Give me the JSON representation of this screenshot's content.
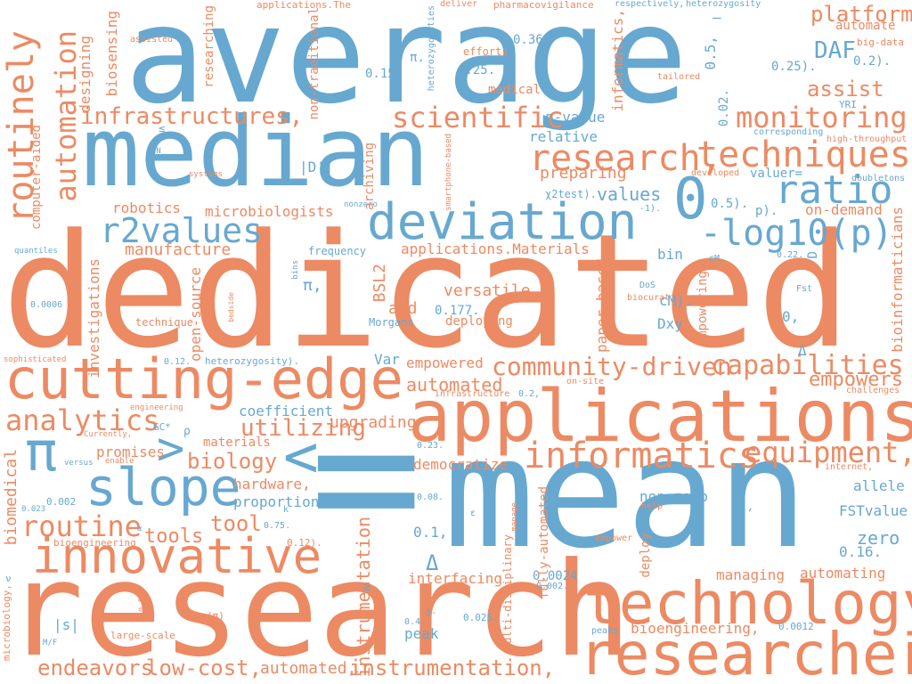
{
  "colors": {
    "blue": "#67a8d0",
    "orange": "#ec8a63",
    "background": "#ffffff"
  },
  "words": [
    {
      "id": "w0",
      "text": "average",
      "color": "blue"
    },
    {
      "id": "w1",
      "text": "median",
      "color": "blue"
    },
    {
      "id": "w2",
      "text": "dedicated",
      "color": "orange"
    },
    {
      "id": "w3",
      "text": "research",
      "color": "orange"
    },
    {
      "id": "w4",
      "text": "mean",
      "color": "blue"
    },
    {
      "id": "w5",
      "text": "applications",
      "color": "orange"
    },
    {
      "id": "w6",
      "text": "=",
      "color": "blue"
    },
    {
      "id": "w7",
      "text": "technology",
      "color": "orange"
    },
    {
      "id": "w8",
      "text": "researchers",
      "color": "orange"
    },
    {
      "id": "w9",
      "text": "cutting-edge",
      "color": "orange"
    },
    {
      "id": "w10",
      "text": "innovative",
      "color": "orange"
    },
    {
      "id": "w11",
      "text": "deviation",
      "color": "blue"
    },
    {
      "id": "w12",
      "text": "slope",
      "color": "blue"
    },
    {
      "id": "w13",
      "text": "π",
      "color": "blue"
    },
    {
      "id": "w14",
      "text": "<",
      "color": "blue"
    },
    {
      "id": "w15",
      "text": ">",
      "color": "blue"
    },
    {
      "id": "w16",
      "text": "0",
      "color": "blue"
    },
    {
      "id": "w17",
      "text": "r2values",
      "color": "blue"
    },
    {
      "id": "w18",
      "text": "-log10(p)",
      "color": "blue"
    },
    {
      "id": "w19",
      "text": "ratio",
      "color": "blue"
    },
    {
      "id": "w20",
      "text": "techniques",
      "color": "orange"
    },
    {
      "id": "w21",
      "text": "research,",
      "color": "orange"
    },
    {
      "id": "w22",
      "text": "monitoring",
      "color": "orange"
    },
    {
      "id": "w23",
      "text": "scientific",
      "color": "orange"
    },
    {
      "id": "w24",
      "text": "infrastructures,",
      "color": "orange"
    },
    {
      "id": "w25",
      "text": "informatics",
      "color": "orange"
    },
    {
      "id": "w26",
      "text": "capabilities",
      "color": "orange"
    },
    {
      "id": "w27",
      "text": "community-driven",
      "color": "orange"
    },
    {
      "id": "w28",
      "text": "equipment,",
      "color": "orange"
    },
    {
      "id": "w29",
      "text": "analytics",
      "color": "orange"
    },
    {
      "id": "w30",
      "text": "routine",
      "color": "orange"
    },
    {
      "id": "w31",
      "text": "tools",
      "color": "orange"
    },
    {
      "id": "w32",
      "text": "biology",
      "color": "orange"
    },
    {
      "id": "w33",
      "text": "utilizing",
      "color": "orange"
    },
    {
      "id": "w34",
      "text": "tool",
      "color": "orange"
    },
    {
      "id": "w35",
      "text": "endeavors",
      "color": "orange"
    },
    {
      "id": "w36",
      "text": "low-cost,",
      "color": "orange"
    },
    {
      "id": "w37",
      "text": "instrumentation,",
      "color": "orange"
    },
    {
      "id": "w38",
      "text": "automated,",
      "color": "orange"
    },
    {
      "id": "w39",
      "text": "routinely",
      "color": "orange"
    },
    {
      "id": "w40",
      "text": "automation",
      "color": "orange"
    },
    {
      "id": "w41",
      "text": "platform",
      "color": "orange"
    },
    {
      "id": "w42",
      "text": "assist",
      "color": "orange"
    },
    {
      "id": "w43",
      "text": "DAF",
      "color": "blue"
    },
    {
      "id": "w44",
      "text": "empowers",
      "color": "orange"
    },
    {
      "id": "w45",
      "text": "automated",
      "color": "orange"
    },
    {
      "id": "w46",
      "text": "coefficient",
      "color": "blue"
    },
    {
      "id": "w47",
      "text": "values",
      "color": "blue"
    },
    {
      "id": "w48",
      "text": "robotics",
      "color": "orange"
    },
    {
      "id": "w49",
      "text": "microbiologists",
      "color": "orange"
    },
    {
      "id": "w50",
      "text": "manufacture",
      "color": "orange"
    },
    {
      "id": "w51",
      "text": "applications.Materials",
      "color": "orange"
    },
    {
      "id": "w52",
      "text": "versatile",
      "color": "orange"
    },
    {
      "id": "w53",
      "text": "aid",
      "color": "orange"
    },
    {
      "id": "w54",
      "text": "deploying",
      "color": "orange"
    },
    {
      "id": "w55",
      "text": "empowered",
      "color": "orange"
    },
    {
      "id": "w56",
      "text": "upgrading",
      "color": "orange"
    },
    {
      "id": "w57",
      "text": "democratize",
      "color": "orange"
    },
    {
      "id": "w58",
      "text": "hardware,",
      "color": "orange"
    },
    {
      "id": "w59",
      "text": "proportion",
      "color": "blue"
    },
    {
      "id": "w60",
      "text": "materials",
      "color": "orange"
    },
    {
      "id": "w61",
      "text": "promises",
      "color": "orange"
    },
    {
      "id": "w62",
      "text": "interfacing",
      "color": "orange"
    },
    {
      "id": "w63",
      "text": "managing",
      "color": "orange"
    },
    {
      "id": "w64",
      "text": "automating",
      "color": "orange"
    },
    {
      "id": "w65",
      "text": "bioengineering,",
      "color": "orange"
    },
    {
      "id": "w66",
      "text": "peak",
      "color": "blue"
    },
    {
      "id": "w67",
      "text": "allele",
      "color": "blue"
    },
    {
      "id": "w68",
      "text": "FSTvalue",
      "color": "blue"
    },
    {
      "id": "w69",
      "text": "zero",
      "color": "blue"
    },
    {
      "id": "w70",
      "text": "0.16.",
      "color": "blue"
    },
    {
      "id": "w71",
      "text": "non-zero",
      "color": "blue"
    },
    {
      "id": "w72",
      "text": "D′",
      "color": "blue"
    },
    {
      "id": "w73",
      "text": "0.1,",
      "color": "blue"
    },
    {
      "id": "w74",
      "text": "Δ",
      "color": "blue"
    },
    {
      "id": "w75",
      "text": "0.0024",
      "color": "blue"
    },
    {
      "id": "w76",
      "text": "bin",
      "color": "blue"
    },
    {
      "id": "w77",
      "text": "cM).",
      "color": "blue"
    },
    {
      "id": "w78",
      "text": "Dxy",
      "color": "blue"
    },
    {
      "id": "w79",
      "text": "0.177.",
      "color": "blue"
    },
    {
      "id": "w80",
      "text": "Var",
      "color": "blue"
    },
    {
      "id": "w81",
      "text": "π,",
      "color": "blue"
    },
    {
      "id": "w82",
      "text": "relative",
      "color": "blue"
    },
    {
      "id": "w83",
      "text": "p-value",
      "color": "blue"
    },
    {
      "id": "w84",
      "text": "preparing",
      "color": "orange"
    },
    {
      "id": "w85",
      "text": "medical",
      "color": "orange"
    },
    {
      "id": "w86",
      "text": "0.36.",
      "color": "blue"
    },
    {
      "id": "w87",
      "text": "0.25.",
      "color": "blue"
    },
    {
      "id": "w88",
      "text": "0.15.",
      "color": "blue"
    },
    {
      "id": "w89",
      "text": "0.5).",
      "color": "blue"
    },
    {
      "id": "w90",
      "text": "valuer=",
      "color": "blue"
    },
    {
      "id": "w91",
      "text": "on-demand",
      "color": "orange"
    },
    {
      "id": "w92",
      "text": "0.25).",
      "color": "blue"
    },
    {
      "id": "w93",
      "text": "0.2).",
      "color": "blue"
    },
    {
      "id": "w94",
      "text": "automate",
      "color": "orange"
    },
    {
      "id": "w95",
      "text": "efforts",
      "color": "orange"
    },
    {
      "id": "w96",
      "text": "frequency",
      "color": "blue"
    },
    {
      "id": "w97",
      "text": "technique",
      "color": "orange"
    },
    {
      "id": "w98",
      "text": "Morgans",
      "color": "blue"
    },
    {
      "id": "w99",
      "text": "heterozygosity).",
      "color": "blue"
    },
    {
      "id": "w100",
      "text": "engineering",
      "color": "orange"
    },
    {
      "id": "w101",
      "text": "biomedical",
      "color": "orange"
    },
    {
      "id": "w102",
      "text": "bioengineering",
      "color": "orange"
    },
    {
      "id": "w103",
      "text": "|s|",
      "color": "blue"
    },
    {
      "id": "w104",
      "text": "large-scale",
      "color": "orange"
    },
    {
      "id": "w105",
      "text": "instrumentation",
      "color": "orange"
    },
    {
      "id": "w106",
      "text": "investigations",
      "color": "orange"
    },
    {
      "id": "w107",
      "text": "open-source",
      "color": "orange"
    },
    {
      "id": "w108",
      "text": "BSL2",
      "color": "orange"
    },
    {
      "id": "w109",
      "text": "computer-aided",
      "color": "orange"
    },
    {
      "id": "w110",
      "text": "biosensing",
      "color": "orange"
    },
    {
      "id": "w111",
      "text": "designing",
      "color": "orange"
    },
    {
      "id": "w112",
      "text": "researching",
      "color": "orange"
    },
    {
      "id": "w113",
      "text": "non-traditional",
      "color": "orange"
    },
    {
      "id": "w114",
      "text": "archiving",
      "color": "orange"
    },
    {
      "id": "w115",
      "text": "informatics,",
      "color": "orange"
    },
    {
      "id": "w116",
      "text": "paper-based",
      "color": "orange"
    },
    {
      "id": "w117",
      "text": "empowering",
      "color": "orange"
    },
    {
      "id": "w118",
      "text": "bioinformaticians",
      "color": "orange"
    },
    {
      "id": "w119",
      "text": "deploy",
      "color": "orange"
    },
    {
      "id": "w120",
      "text": "fully-automated",
      "color": "orange"
    },
    {
      "id": "w121",
      "text": "multi-disciplinary",
      "color": "orange"
    },
    {
      "id": "w122",
      "text": "0.02.",
      "color": "blue"
    },
    {
      "id": "w123",
      "text": "0.5,",
      "color": "blue"
    },
    {
      "id": "w124",
      "text": "|D′|",
      "color": "blue"
    },
    {
      "id": "w125",
      "text": "applications.The",
      "color": "orange"
    },
    {
      "id": "w126",
      "text": "pharmacovigilance",
      "color": "orange"
    },
    {
      "id": "w127",
      "text": "respectively,",
      "color": "blue"
    },
    {
      "id": "w128",
      "text": "heterozygosity",
      "color": "blue"
    },
    {
      "id": "w129",
      "text": "deliver",
      "color": "orange"
    },
    {
      "id": "w130",
      "text": "big-data",
      "color": "orange"
    },
    {
      "id": "w131",
      "text": "assisted",
      "color": "orange"
    },
    {
      "id": "w132",
      "text": "tailored",
      "color": "orange"
    },
    {
      "id": "w133",
      "text": "YRI",
      "color": "blue"
    },
    {
      "id": "w134",
      "text": "corresponding",
      "color": "blue"
    },
    {
      "id": "w135",
      "text": "high-throughput",
      "color": "orange"
    },
    {
      "id": "w136",
      "text": "doubletons",
      "color": "blue"
    },
    {
      "id": "w137",
      "text": "developed",
      "color": "orange"
    },
    {
      "id": "w138",
      "text": "χ2test).",
      "color": "blue"
    },
    {
      "id": "w139",
      "text": "-1).",
      "color": "blue"
    },
    {
      "id": "w140",
      "text": "p).",
      "color": "blue"
    },
    {
      "id": "w141",
      "text": "0.22.",
      "color": "blue"
    },
    {
      "id": "w142",
      "text": "Fst",
      "color": "blue"
    },
    {
      "id": "w143",
      "text": "cM.",
      "color": "blue"
    },
    {
      "id": "w144",
      "text": "DoS",
      "color": "blue"
    },
    {
      "id": "w145",
      "text": "biocuration",
      "color": "orange"
    },
    {
      "id": "w146",
      "text": "on-site",
      "color": "orange"
    },
    {
      "id": "w147",
      "text": "infrastructure",
      "color": "orange"
    },
    {
      "id": "w148",
      "text": "0.2,",
      "color": "blue"
    },
    {
      "id": "w149",
      "text": "challenges",
      "color": "orange"
    },
    {
      "id": "w150",
      "text": "internet,",
      "color": "orange"
    },
    {
      "id": "w151",
      "text": "help",
      "color": "orange"
    },
    {
      "id": "w152",
      "text": "10-6.",
      "color": "blue"
    },
    {
      "id": "w153",
      "text": "manage",
      "color": "orange"
    },
    {
      "id": "w154",
      "text": "empower",
      "color": "orange"
    },
    {
      "id": "w155",
      "text": "0.002.",
      "color": "blue"
    },
    {
      "id": "w156",
      "text": "0.025.",
      "color": "blue"
    },
    {
      "id": "w157",
      "text": "0.4.",
      "color": "blue"
    },
    {
      "id": "w158",
      "text": "1-",
      "color": "blue"
    },
    {
      "id": "w159",
      "text": "peaks",
      "color": "blue"
    },
    {
      "id": "w160",
      "text": "0.0012",
      "color": "blue"
    },
    {
      "id": "w161",
      "text": "0.23.",
      "color": "blue"
    },
    {
      "id": "w162",
      "text": "0.08.",
      "color": "blue"
    },
    {
      "id": "w163",
      "text": "0.12.",
      "color": "blue"
    },
    {
      "id": "w164",
      "text": "0.12).",
      "color": "orange"
    },
    {
      "id": "w165",
      "text": "0.0006",
      "color": "blue"
    },
    {
      "id": "w166",
      "text": "0.023",
      "color": "blue"
    },
    {
      "id": "w167",
      "text": "0.002",
      "color": "blue"
    },
    {
      "id": "w168",
      "text": "0.75.",
      "color": "blue"
    },
    {
      "id": "w169",
      "text": "0.50.",
      "color": "orange"
    },
    {
      "id": "w170",
      "text": "(π)",
      "color": "orange"
    },
    {
      "id": "w171",
      "text": "M/F",
      "color": "blue"
    },
    {
      "id": "w172",
      "text": "microbiology,",
      "color": "orange"
    },
    {
      "id": "w173",
      "text": "sophisticated",
      "color": "orange"
    },
    {
      "id": "w174",
      "text": "quantiles",
      "color": "blue"
    },
    {
      "id": "w175",
      "text": "systems",
      "color": "orange"
    },
    {
      "id": "w176",
      "text": "dN",
      "color": "blue"
    },
    {
      "id": "w177",
      "text": "≤",
      "color": "blue"
    },
    {
      "id": "w178",
      "text": "nonzero",
      "color": "blue"
    },
    {
      "id": "w179",
      "text": "bins",
      "color": "blue"
    },
    {
      "id": "w180",
      "text": "bedside",
      "color": "orange"
    },
    {
      "id": "w181",
      "text": "heterozygosities",
      "color": "blue"
    },
    {
      "id": "w182",
      "text": "smartphone-based",
      "color": "orange"
    },
    {
      "id": "w183",
      "text": "θ",
      "color": "blue"
    },
    {
      "id": "w184",
      "text": "π.",
      "color": "blue"
    },
    {
      "id": "w185",
      "text": "Currently,",
      "color": "orange"
    },
    {
      "id": "w186",
      "text": "enable",
      "color": "orange"
    },
    {
      "id": "w187",
      "text": "versus",
      "color": "blue"
    },
    {
      "id": "w188",
      "text": "GC*",
      "color": "blue"
    },
    {
      "id": "w189",
      "text": "ρ",
      "color": "blue"
    },
    {
      "id": "w190",
      "text": "k",
      "color": "blue"
    },
    {
      "id": "w191",
      "text": "α",
      "color": "blue"
    },
    {
      "id": "w192",
      "text": "ε",
      "color": "blue"
    },
    {
      "id": "w193",
      "text": "0,",
      "color": "blue"
    },
    {
      "id": "w194",
      "text": "Δ",
      "color": "blue"
    },
    {
      "id": "w195",
      "text": "D",
      "color": "blue"
    },
    {
      "id": "w196",
      "text": "–",
      "color": "blue"
    },
    {
      "id": "w197",
      "text": "≥",
      "color": "blue"
    },
    {
      "id": "w198",
      "text": "ν",
      "color": "blue"
    }
  ]
}
